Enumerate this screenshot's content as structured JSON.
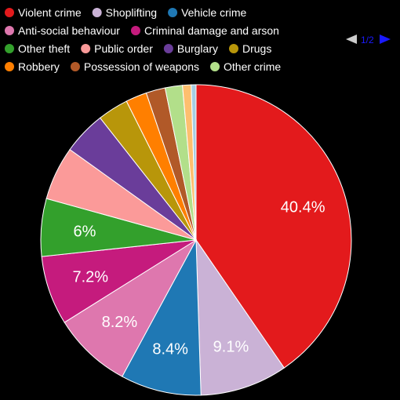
{
  "chart_data": {
    "type": "pie",
    "slices": [
      {
        "label": "Violent crime",
        "value": 40.4,
        "color": "#e31a1c",
        "show_label": true
      },
      {
        "label": "Shoplifting",
        "value": 9.1,
        "color": "#cab2d6",
        "show_label": true
      },
      {
        "label": "Vehicle crime",
        "value": 8.4,
        "color": "#1f78b4",
        "show_label": true
      },
      {
        "label": "Anti-social behaviour",
        "value": 8.2,
        "color": "#de77ae",
        "show_label": true
      },
      {
        "label": "Criminal damage and arson",
        "value": 7.2,
        "color": "#c51b7d",
        "show_label": true
      },
      {
        "label": "Other theft",
        "value": 6.0,
        "color": "#33a02c",
        "show_label": true
      },
      {
        "label": "Public order",
        "value": 5.6,
        "color": "#fb9a99",
        "show_label": false
      },
      {
        "label": "Burglary",
        "value": 4.5,
        "color": "#6a3d9a",
        "show_label": false
      },
      {
        "label": "Drugs",
        "value": 3.2,
        "color": "#b8960a",
        "show_label": false
      },
      {
        "label": "Robbery",
        "value": 2.2,
        "color": "#ff7f00",
        "show_label": false
      },
      {
        "label": "Possession of weapons",
        "value": 2.0,
        "color": "#b15928",
        "show_label": false
      },
      {
        "label": "Other crime",
        "value": 1.8,
        "color": "#b2df8a",
        "show_label": false
      },
      {
        "label": "",
        "value": 0.9,
        "color": "#fdbf6f",
        "show_label": false
      },
      {
        "label": "",
        "value": 0.5,
        "color": "#a6cee3",
        "show_label": false
      }
    ],
    "legend_placement": "top",
    "label_format": "percent"
  },
  "legend": {
    "rows": [
      [
        0,
        1,
        2
      ],
      [
        3,
        4
      ],
      [
        5,
        6,
        7,
        8
      ],
      [
        9,
        10,
        11
      ]
    ]
  },
  "pager": {
    "text": "1/2",
    "prev_color": "#cccccc",
    "next_color": "#1a1aff"
  }
}
